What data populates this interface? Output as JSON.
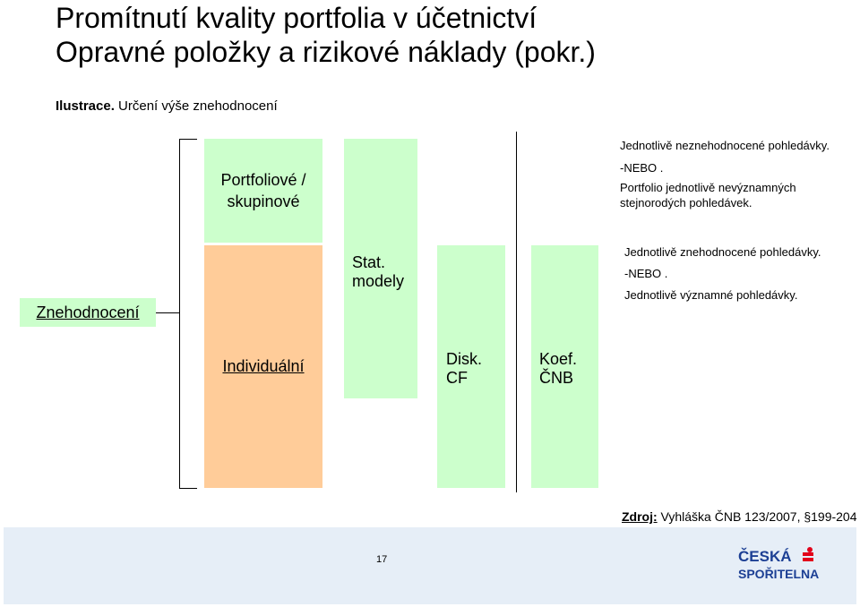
{
  "title": {
    "line1": "Promítnutí kvality portfolia v účetnictví",
    "line2": "Opravné položky a rizikové náklady (pokr.)"
  },
  "illustration": {
    "label": "Ilustrace.",
    "text": " Určení výše znehodnocení"
  },
  "diagram": {
    "portfolio_line1": "Portfoliové /",
    "portfolio_line2": "skupinové",
    "individual": "Individuální",
    "impairment": "Znehodnocení",
    "stat_line1": "Stat.",
    "stat_line2": "modely",
    "disk_line1": "Disk.",
    "disk_line2": "CF",
    "koef_line1": "Koef.",
    "koef_line2": "ČNB",
    "top_notes": [
      "Jednotlivě neznehodnocené pohledávky.",
      "-NEBO .",
      "Portfolio jednotlivě nevýznamných",
      "stejnorodých pohledávek."
    ],
    "bottom_notes": [
      "Jednotlivě znehodnocené pohledávky.",
      "-NEBO .",
      "Jednotlivě významné pohledávky."
    ]
  },
  "source": {
    "label": "Zdroj:",
    "text": " Vyhláška ČNB 123/2007, §199-204"
  },
  "footer": {
    "page_number": "17",
    "logo_line1": "ČESKÁ",
    "logo_line2": "SPOŘITELNA"
  },
  "colors": {
    "green_box": "#ccffcc",
    "orange_box": "#ffcc99",
    "footer_bg": "#e6eef7",
    "logo_blue": "#1c3f94",
    "logo_red": "#e2001a"
  }
}
